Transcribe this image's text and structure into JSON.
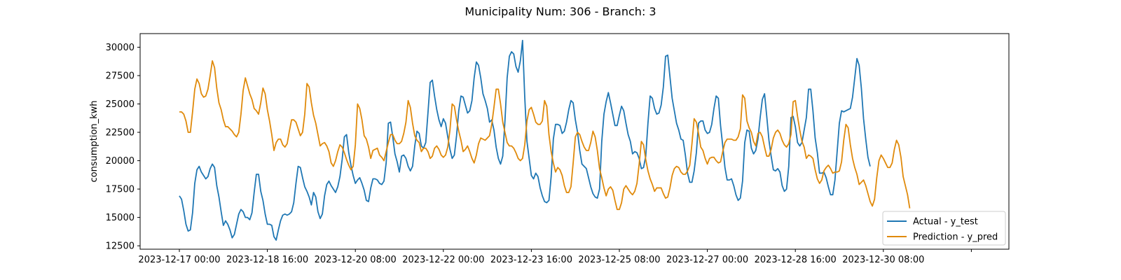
{
  "chart_data": {
    "type": "line",
    "title": "Municipality Num: 306 - Branch: 3",
    "xlabel": "",
    "ylabel": "consumption_kwh",
    "ylim": [
      12200,
      31200
    ],
    "yticks": [
      12500,
      15000,
      17500,
      20000,
      22500,
      25000,
      27500,
      30000
    ],
    "x_start": "2023-12-17 00:00",
    "x_step_hours": 1,
    "xticks": [
      {
        "label": "2023-12-17 00:00",
        "hour": 0
      },
      {
        "label": "2023-12-18 16:00",
        "hour": 40
      },
      {
        "label": "2023-12-20 08:00",
        "hour": 80
      },
      {
        "label": "2023-12-22 00:00",
        "hour": 120
      },
      {
        "label": "2023-12-23 16:00",
        "hour": 160
      },
      {
        "label": "2023-12-25 08:00",
        "hour": 200
      },
      {
        "label": "2023-12-27 00:00",
        "hour": 240
      },
      {
        "label": "2023-12-28 16:00",
        "hour": 280
      },
      {
        "label": "2023-12-30 08:00",
        "hour": 320
      },
      {
        "label": "",
        "hour": 360
      }
    ],
    "legend_position": "lower-right",
    "grid": false,
    "series": [
      {
        "name": "Actual - y_test",
        "color": "#1f77b4",
        "values": [
          16900,
          16600,
          15600,
          14400,
          13800,
          13900,
          15400,
          18000,
          19200,
          19500,
          19000,
          18700,
          18400,
          18600,
          19300,
          19700,
          19400,
          17800,
          16800,
          15500,
          14300,
          14700,
          14400,
          13900,
          13200,
          13500,
          14400,
          15300,
          15700,
          15500,
          15000,
          15000,
          14800,
          15400,
          17200,
          18800,
          18800,
          17300,
          16500,
          15300,
          14400,
          14400,
          14300,
          13300,
          13000,
          13900,
          14700,
          15200,
          15300,
          15200,
          15300,
          15500,
          16300,
          18000,
          19500,
          19400,
          18500,
          17700,
          17300,
          16800,
          16100,
          17200,
          16800,
          15500,
          14900,
          15300,
          16900,
          17900,
          18200,
          17800,
          17500,
          17200,
          17700,
          18600,
          20100,
          22100,
          22300,
          20700,
          19600,
          18700,
          18000,
          18300,
          18500,
          18000,
          17400,
          16500,
          16400,
          17600,
          18400,
          18400,
          18300,
          18000,
          17900,
          18200,
          19800,
          23300,
          23400,
          22100,
          20600,
          19900,
          19000,
          20400,
          20500,
          20200,
          19500,
          19100,
          19500,
          21300,
          22600,
          22400,
          21300,
          21100,
          21600,
          24200,
          26900,
          27100,
          25700,
          24500,
          23600,
          23000,
          23700,
          23300,
          22100,
          21000,
          20200,
          20500,
          22200,
          24400,
          25700,
          25600,
          24900,
          24200,
          24400,
          25300,
          27300,
          28700,
          28400,
          27300,
          25900,
          25300,
          24600,
          23400,
          23600,
          22700,
          21200,
          20200,
          19700,
          20400,
          23500,
          27300,
          29200,
          29600,
          29400,
          28300,
          27800,
          28800,
          30600,
          25600,
          21700,
          20200,
          18700,
          18400,
          18900,
          18600,
          17600,
          16900,
          16400,
          16300,
          16500,
          18600,
          21900,
          23200,
          23200,
          23100,
          22400,
          22600,
          23400,
          24500,
          25300,
          25100,
          23600,
          22500,
          20900,
          19700,
          19500,
          19300,
          18500,
          17700,
          17100,
          16800,
          16700,
          17500,
          21700,
          24100,
          25200,
          26000,
          25100,
          24100,
          23100,
          23100,
          24000,
          24800,
          24400,
          23300,
          22300,
          21700,
          20600,
          20800,
          20700,
          20200,
          19300,
          19400,
          20400,
          23300,
          25700,
          25500,
          24600,
          24100,
          24200,
          24900,
          26500,
          29200,
          29300,
          27400,
          25500,
          24400,
          23300,
          22700,
          21900,
          21800,
          20500,
          18900,
          18100,
          18100,
          19100,
          20700,
          23300,
          23500,
          23500,
          22700,
          22400,
          22500,
          23200,
          24600,
          25700,
          25500,
          23100,
          21300,
          19400,
          18300,
          18300,
          18400,
          17800,
          17000,
          16500,
          16700,
          18200,
          21600,
          22700,
          22600,
          21100,
          20600,
          20900,
          21900,
          23800,
          25400,
          25900,
          23900,
          21800,
          20400,
          19200,
          19100,
          19300,
          19000,
          17800,
          17300,
          17500,
          19500,
          23800,
          23900,
          23000,
          21600,
          21300,
          21600,
          22700,
          23800,
          26300,
          26300,
          24400,
          22000,
          20700,
          18900,
          18900,
          19000,
          18500,
          17700,
          17000,
          17000,
          18300,
          20800,
          23300,
          24400,
          24300,
          24400,
          24500,
          24600,
          25600,
          27300,
          29000,
          28400,
          26400,
          23700,
          21900,
          20300,
          19500
        ]
      },
      {
        "name": "Prediction - y_pred",
        "color": "#e08a0b",
        "values": [
          24300,
          24300,
          24100,
          23500,
          22500,
          22500,
          24300,
          26300,
          27200,
          26800,
          25900,
          25600,
          25700,
          26300,
          27500,
          28800,
          28200,
          26400,
          25100,
          24500,
          23600,
          23000,
          23000,
          22800,
          22600,
          22300,
          22100,
          22500,
          24100,
          26200,
          27300,
          26600,
          25900,
          25400,
          24600,
          24400,
          24100,
          25100,
          26400,
          25900,
          24500,
          23500,
          22300,
          20900,
          21600,
          21900,
          21900,
          21400,
          21200,
          21500,
          22600,
          23600,
          23600,
          23400,
          22800,
          22200,
          22500,
          24100,
          26800,
          26500,
          25100,
          24000,
          23300,
          22300,
          21300,
          21500,
          21600,
          21300,
          20800,
          19800,
          19500,
          20000,
          20800,
          21400,
          21200,
          20700,
          20100,
          19600,
          19200,
          19500,
          21400,
          25000,
          24600,
          23600,
          22200,
          21900,
          21200,
          20200,
          20900,
          21000,
          21100,
          20500,
          20300,
          20000,
          20800,
          21600,
          22300,
          22300,
          21800,
          21500,
          21500,
          21700,
          22400,
          23400,
          25300,
          24700,
          23300,
          22200,
          21800,
          21600,
          20800,
          21100,
          21100,
          20800,
          20200,
          20400,
          21100,
          21300,
          21000,
          20500,
          20300,
          20500,
          21200,
          22700,
          25000,
          24800,
          23600,
          22600,
          21800,
          20800,
          21000,
          21300,
          20800,
          20200,
          19800,
          20500,
          21500,
          22000,
          21900,
          21800,
          22000,
          22200,
          23200,
          24700,
          26300,
          26300,
          25000,
          23400,
          22500,
          21600,
          21300,
          21300,
          21100,
          20700,
          20200,
          20000,
          20200,
          21400,
          23500,
          24500,
          24700,
          24100,
          23400,
          23200,
          23200,
          23500,
          25300,
          24800,
          22300,
          20800,
          19800,
          19000,
          19400,
          19200,
          18700,
          17800,
          17200,
          17200,
          17700,
          19800,
          22100,
          22500,
          22300,
          21700,
          21200,
          20900,
          20900,
          21600,
          22600,
          22100,
          20900,
          19300,
          18500,
          17600,
          16900,
          17500,
          17700,
          17400,
          16500,
          15700,
          15700,
          16300,
          17500,
          17800,
          17500,
          17200,
          17000,
          17300,
          18000,
          19700,
          21700,
          21400,
          20100,
          19100,
          18400,
          17900,
          17300,
          17600,
          17600,
          17600,
          17100,
          16700,
          16800,
          17600,
          18700,
          19300,
          19500,
          19400,
          19000,
          18800,
          18800,
          19100,
          19600,
          21500,
          23700,
          23400,
          22400,
          21200,
          20900,
          20200,
          19700,
          20200,
          20300,
          20300,
          20000,
          19800,
          19900,
          20800,
          21600,
          21900,
          21900,
          21900,
          21800,
          21800,
          22100,
          22800,
          25800,
          25500,
          23500,
          22900,
          22500,
          21700,
          21300,
          22400,
          22500,
          22100,
          21200,
          20400,
          20400,
          21000,
          22000,
          22500,
          22700,
          22400,
          21800,
          21400,
          21200,
          21500,
          22300,
          25200,
          25300,
          23900,
          22700,
          21700,
          21200,
          20200,
          20500,
          20400,
          20200,
          19200,
          18400,
          18000,
          18300,
          19100,
          19400,
          19600,
          19300,
          18900,
          19000,
          19000,
          19100,
          19900,
          21800,
          23200,
          22900,
          21400,
          20200,
          19400,
          18800,
          17900,
          18100,
          18300,
          17800,
          17100,
          16400,
          16000,
          16600,
          18500,
          20000,
          20500,
          20200,
          19800,
          19400,
          19400,
          19800,
          21000,
          21800,
          21400,
          20300,
          18600,
          17800,
          17000,
          15800
        ]
      }
    ]
  }
}
